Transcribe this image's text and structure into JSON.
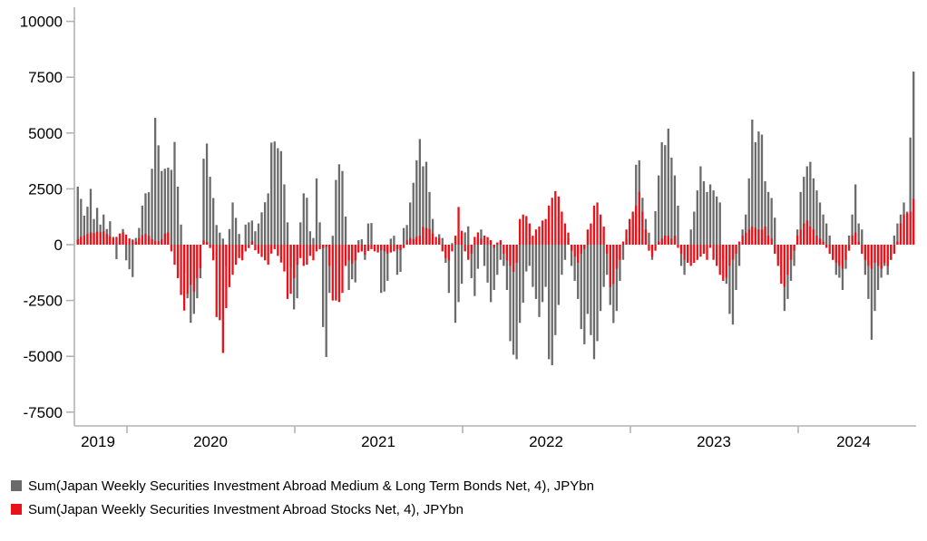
{
  "legend": {
    "bonds_label": "Sum(Japan Weekly Securities Investment Abroad Medium & Long Term Bonds Net, 4), JPYbn",
    "stocks_label": "Sum(Japan Weekly Securities Investment Abroad Stocks Net, 4), JPYbn"
  },
  "colors": {
    "bonds": "#6b6b6b",
    "stocks": "#e8121a",
    "axis": "#b3b3b3",
    "text": "#000000"
  },
  "chart_data": {
    "type": "bar",
    "title": "",
    "xlabel": "",
    "ylabel": "",
    "unit": "JPYbn",
    "frequency": "weekly",
    "x_start": "2019-09",
    "x_end": "2024-09",
    "ylim": [
      -7500,
      10000
    ],
    "grid": false,
    "legend_position": "bottom-left",
    "y_ticks": [
      10000,
      7500,
      5000,
      2500,
      0,
      -2500,
      -5000,
      -7500
    ],
    "y_tick_labels": [
      "10000",
      "7500",
      "5000",
      "2500",
      "0",
      "-2500",
      "-5000",
      "-7500"
    ],
    "x_tick_years": [
      "2019",
      "2020",
      "2021",
      "2022",
      "2023",
      "2024"
    ],
    "bar_style": "overlapped-weekly-columns, stocks drawn in front of bonds",
    "series": [
      {
        "name": "Sum(Japan Weekly Securities Investment Abroad Medium & Long Term Bonds Net, 4), JPYbn",
        "color": "#6b6b6b",
        "values": [
          2600,
          2050,
          1300,
          1700,
          2500,
          1150,
          1650,
          900,
          1350,
          700,
          1050,
          350,
          -650,
          150,
          700,
          -700,
          -1100,
          -1450,
          300,
          750,
          1750,
          2300,
          2350,
          3400,
          5680,
          4450,
          3300,
          3400,
          3450,
          3350,
          4600,
          2600,
          900,
          -1300,
          -2400,
          -3500,
          -3100,
          -2400,
          -1500,
          3850,
          4530,
          3040,
          2090,
          880,
          540,
          270,
          -950,
          700,
          1890,
          1200,
          480,
          -400,
          900,
          1000,
          1080,
          600,
          950,
          1450,
          1900,
          2300,
          4570,
          4620,
          4320,
          4190,
          2700,
          1000,
          -1000,
          -2900,
          -2400,
          1000,
          2300,
          2100,
          600,
          300,
          2970,
          1000,
          -3690,
          -5030,
          -2160,
          400,
          2900,
          3600,
          3300,
          1260,
          -2030,
          -1550,
          -1690,
          200,
          240,
          -680,
          950,
          970,
          0,
          -200,
          -2160,
          -2100,
          -1620,
          270,
          400,
          -1350,
          -1220,
          745,
          880,
          1890,
          2770,
          3780,
          4730,
          3510,
          3710,
          2360,
          1150,
          0,
          470,
          300,
          -810,
          -2160,
          70,
          -3500,
          -2570,
          -1750,
          550,
          820,
          -1500,
          -2300,
          -1080,
          680,
          -950,
          -1700,
          -2570,
          -2030,
          -1350,
          -680,
          -950,
          -2030,
          -4320,
          -4930,
          -5130,
          -3500,
          -2600,
          -1200,
          -950,
          -1890,
          -2430,
          -3240,
          -2570,
          -1890,
          -5130,
          -5400,
          -4050,
          -2700,
          -1350,
          -680,
          270,
          -950,
          -1620,
          -2430,
          -3780,
          -4460,
          -3100,
          -4050,
          -5130,
          -4320,
          -2970,
          -1890,
          -1350,
          -2700,
          -3510,
          -2970,
          -1620,
          -680,
          270,
          810,
          1350,
          3580,
          3780,
          2100,
          1150,
          540,
          -680,
          1500,
          3100,
          4590,
          4460,
          5200,
          3900,
          3100,
          1750,
          -950,
          -1350,
          -680,
          680,
          1480,
          2430,
          3510,
          2840,
          2360,
          2700,
          2430,
          2160,
          1890,
          -680,
          -1750,
          -3100,
          -3580,
          -2030,
          -950,
          680,
          1350,
          2970,
          5600,
          4590,
          5070,
          4930,
          2840,
          2360,
          2090,
          1210,
          -680,
          -1350,
          -2970,
          -2430,
          -1620,
          -950,
          680,
          2360,
          3040,
          3510,
          3710,
          2970,
          2430,
          1890,
          1350,
          950,
          410,
          -680,
          -1350,
          -1480,
          -2030,
          -1080,
          410,
          1350,
          2700,
          950,
          680,
          -1350,
          -2430,
          -4260,
          -2970,
          -2030,
          -1480,
          -950,
          -1350,
          -680,
          410,
          950,
          1350,
          1890,
          1480,
          4800,
          7750
        ]
      },
      {
        "name": "Sum(Japan Weekly Securities Investment Abroad Stocks Net, 4), JPYbn",
        "color": "#e8121a",
        "values": [
          250,
          350,
          420,
          480,
          550,
          520,
          580,
          560,
          600,
          480,
          380,
          300,
          350,
          500,
          550,
          450,
          280,
          230,
          130,
          300,
          420,
          480,
          400,
          250,
          150,
          150,
          250,
          500,
          550,
          -300,
          -900,
          -1500,
          -2250,
          -2950,
          -2200,
          -1800,
          -2100,
          -1500,
          -1050,
          200,
          120,
          -150,
          -700,
          -3240,
          -3380,
          -4850,
          -2840,
          -1900,
          -1350,
          -900,
          -600,
          -700,
          -300,
          -150,
          150,
          -250,
          -400,
          -550,
          -700,
          -900,
          -400,
          -200,
          -500,
          -800,
          -1200,
          -2430,
          -2200,
          -1500,
          -900,
          -600,
          -950,
          -900,
          -500,
          -700,
          -300,
          -200,
          -150,
          -100,
          -950,
          -2500,
          -2500,
          -2570,
          -2160,
          -950,
          -700,
          -850,
          -700,
          -350,
          -300,
          -450,
          -280,
          -200,
          -300,
          -350,
          -250,
          -300,
          -400,
          -350,
          -300,
          -200,
          -250,
          -150,
          200,
          300,
          250,
          350,
          400,
          800,
          750,
          700,
          500,
          350,
          300,
          -300,
          -600,
          -700,
          -300,
          400,
          1690,
          620,
          -300,
          -680,
          -400,
          350,
          550,
          270,
          410,
          340,
          200,
          -140,
          100,
          200,
          -400,
          -700,
          -950,
          -1220,
          -810,
          1150,
          1350,
          1280,
          950,
          400,
          680,
          810,
          1080,
          1150,
          1750,
          2100,
          2400,
          2160,
          1480,
          950,
          540,
          -270,
          -540,
          -810,
          -410,
          -200,
          680,
          950,
          1750,
          1890,
          1350,
          810,
          -400,
          -1890,
          -1750,
          -1080,
          -680,
          140,
          680,
          1150,
          1480,
          1750,
          2370,
          1480,
          680,
          -270,
          -540,
          -270,
          140,
          270,
          410,
          400,
          270,
          400,
          -140,
          -410,
          -680,
          -810,
          -950,
          -810,
          -680,
          -540,
          -410,
          -680,
          -140,
          -680,
          -950,
          -1350,
          -1620,
          -1480,
          -950,
          -680,
          -410,
          140,
          410,
          540,
          680,
          810,
          750,
          680,
          680,
          810,
          400,
          270,
          -410,
          -950,
          -1750,
          -1890,
          -1350,
          -680,
          -270,
          410,
          680,
          950,
          1080,
          810,
          680,
          410,
          270,
          140,
          -140,
          -410,
          -680,
          -810,
          -950,
          -1080,
          -680,
          -270,
          410,
          540,
          140,
          -410,
          -680,
          -950,
          -1080,
          -810,
          -950,
          -1080,
          -810,
          -950,
          -680,
          -410,
          140,
          950,
          1350,
          1400,
          1480,
          2050
        ]
      }
    ]
  }
}
